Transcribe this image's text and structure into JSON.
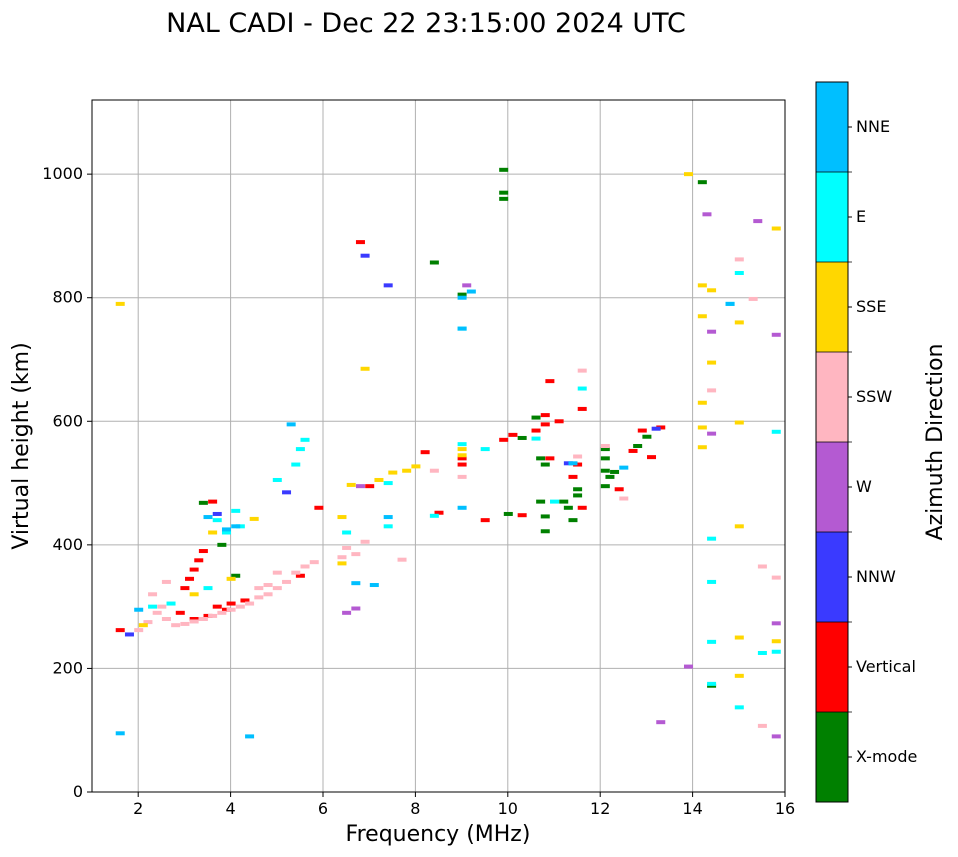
{
  "chart_data": {
    "type": "scatter",
    "title": "NAL CADI - Dec 22 23:15:00 2024 UTC",
    "xlabel": "Frequency (MHz)",
    "ylabel": "Virtual height (km)",
    "xlim": [
      1,
      16
    ],
    "ylim": [
      0,
      1120
    ],
    "xticks": [
      2,
      4,
      6,
      8,
      10,
      12,
      14,
      16
    ],
    "yticks": [
      0,
      200,
      400,
      600,
      800,
      1000
    ],
    "grid": true,
    "colorbar": {
      "label": "Azimuth Direction",
      "categories": [
        {
          "name": "X-mode",
          "color": "#008000"
        },
        {
          "name": "Vertical",
          "color": "#ff0000"
        },
        {
          "name": "NNW",
          "color": "#3a3aff"
        },
        {
          "name": "W",
          "color": "#b45ad2"
        },
        {
          "name": "SSW",
          "color": "#ffb6c1"
        },
        {
          "name": "SSE",
          "color": "#ffd700"
        },
        {
          "name": "E",
          "color": "#00ffff"
        },
        {
          "name": "NNE",
          "color": "#00bfff"
        }
      ]
    },
    "series": [
      {
        "name": "X-mode",
        "points": [
          [
            3.4,
            468
          ],
          [
            3.8,
            400
          ],
          [
            4.1,
            350
          ],
          [
            8.4,
            857
          ],
          [
            9.0,
            805
          ],
          [
            9.9,
            1007
          ],
          [
            9.9,
            970
          ],
          [
            9.9,
            960
          ],
          [
            10.0,
            450
          ],
          [
            10.3,
            573
          ],
          [
            10.6,
            606
          ],
          [
            10.7,
            540
          ],
          [
            10.8,
            530
          ],
          [
            10.7,
            470
          ],
          [
            10.8,
            446
          ],
          [
            10.8,
            422
          ],
          [
            11.2,
            470
          ],
          [
            11.3,
            460
          ],
          [
            11.4,
            440
          ],
          [
            11.5,
            480
          ],
          [
            11.5,
            490
          ],
          [
            12.1,
            555
          ],
          [
            12.1,
            540
          ],
          [
            12.1,
            520
          ],
          [
            12.2,
            510
          ],
          [
            12.3,
            518
          ],
          [
            12.1,
            495
          ],
          [
            12.8,
            560
          ],
          [
            13.0,
            575
          ],
          [
            14.2,
            987
          ],
          [
            14.4,
            172
          ]
        ]
      },
      {
        "name": "Vertical",
        "points": [
          [
            1.6,
            262
          ],
          [
            2.9,
            290
          ],
          [
            3.0,
            330
          ],
          [
            3.1,
            345
          ],
          [
            3.2,
            360
          ],
          [
            3.3,
            375
          ],
          [
            3.4,
            390
          ],
          [
            3.2,
            280
          ],
          [
            3.5,
            285
          ],
          [
            3.6,
            470
          ],
          [
            3.7,
            300
          ],
          [
            3.9,
            295
          ],
          [
            4.0,
            305
          ],
          [
            4.3,
            310
          ],
          [
            5.5,
            350
          ],
          [
            5.9,
            460
          ],
          [
            6.8,
            890
          ],
          [
            7.0,
            495
          ],
          [
            8.2,
            550
          ],
          [
            8.5,
            452
          ],
          [
            9.0,
            540
          ],
          [
            9.0,
            530
          ],
          [
            9.5,
            440
          ],
          [
            9.9,
            570
          ],
          [
            10.1,
            578
          ],
          [
            10.3,
            448
          ],
          [
            10.6,
            585
          ],
          [
            10.8,
            610
          ],
          [
            10.8,
            595
          ],
          [
            10.9,
            665
          ],
          [
            10.9,
            540
          ],
          [
            11.1,
            600
          ],
          [
            11.4,
            510
          ],
          [
            11.5,
            530
          ],
          [
            11.6,
            620
          ],
          [
            11.6,
            460
          ],
          [
            12.4,
            490
          ],
          [
            12.7,
            552
          ],
          [
            12.9,
            585
          ],
          [
            13.1,
            542
          ],
          [
            13.3,
            590
          ]
        ]
      },
      {
        "name": "NNW",
        "points": [
          [
            1.8,
            255
          ],
          [
            3.7,
            450
          ],
          [
            5.2,
            485
          ],
          [
            6.9,
            868
          ],
          [
            7.4,
            820
          ],
          [
            11.3,
            532
          ],
          [
            13.2,
            588
          ]
        ]
      },
      {
        "name": "W",
        "points": [
          [
            6.5,
            290
          ],
          [
            6.7,
            297
          ],
          [
            6.8,
            495
          ],
          [
            9.1,
            820
          ],
          [
            13.3,
            113
          ],
          [
            13.9,
            203
          ],
          [
            14.3,
            935
          ],
          [
            14.4,
            745
          ],
          [
            14.4,
            580
          ],
          [
            15.4,
            924
          ],
          [
            15.8,
            740
          ],
          [
            15.8,
            273
          ],
          [
            15.8,
            90
          ]
        ]
      },
      {
        "name": "SSW",
        "points": [
          [
            2.0,
            262
          ],
          [
            2.2,
            275
          ],
          [
            2.4,
            290
          ],
          [
            2.5,
            300
          ],
          [
            2.6,
            280
          ],
          [
            2.8,
            270
          ],
          [
            3.0,
            272
          ],
          [
            3.2,
            276
          ],
          [
            3.4,
            280
          ],
          [
            3.6,
            285
          ],
          [
            3.8,
            290
          ],
          [
            4.0,
            295
          ],
          [
            4.2,
            300
          ],
          [
            4.4,
            305
          ],
          [
            4.6,
            315
          ],
          [
            4.8,
            320
          ],
          [
            5.0,
            330
          ],
          [
            5.2,
            340
          ],
          [
            5.4,
            355
          ],
          [
            5.6,
            365
          ],
          [
            5.8,
            372
          ],
          [
            2.3,
            320
          ],
          [
            2.6,
            340
          ],
          [
            4.6,
            330
          ],
          [
            4.8,
            335
          ],
          [
            5.0,
            355
          ],
          [
            6.4,
            380
          ],
          [
            6.5,
            395
          ],
          [
            6.7,
            385
          ],
          [
            6.9,
            405
          ],
          [
            7.7,
            376
          ],
          [
            8.4,
            520
          ],
          [
            9.0,
            510
          ],
          [
            11.5,
            543
          ],
          [
            11.6,
            682
          ],
          [
            12.1,
            560
          ],
          [
            12.5,
            475
          ],
          [
            14.4,
            650
          ],
          [
            15.0,
            862
          ],
          [
            15.3,
            798
          ],
          [
            15.5,
            365
          ],
          [
            15.5,
            107
          ],
          [
            15.8,
            347
          ]
        ]
      },
      {
        "name": "SSE",
        "points": [
          [
            1.6,
            790
          ],
          [
            2.1,
            270
          ],
          [
            3.2,
            320
          ],
          [
            3.6,
            420
          ],
          [
            4.0,
            345
          ],
          [
            4.5,
            442
          ],
          [
            6.4,
            445
          ],
          [
            6.4,
            370
          ],
          [
            6.6,
            497
          ],
          [
            6.9,
            685
          ],
          [
            7.2,
            505
          ],
          [
            7.5,
            517
          ],
          [
            7.8,
            520
          ],
          [
            8.0,
            527
          ],
          [
            9.0,
            555
          ],
          [
            9.0,
            545
          ],
          [
            13.9,
            1000
          ],
          [
            14.2,
            630
          ],
          [
            14.2,
            820
          ],
          [
            14.2,
            770
          ],
          [
            14.2,
            590
          ],
          [
            14.2,
            558
          ],
          [
            14.4,
            812
          ],
          [
            14.4,
            695
          ],
          [
            15.0,
            760
          ],
          [
            15.0,
            598
          ],
          [
            15.0,
            430
          ],
          [
            15.0,
            250
          ],
          [
            15.0,
            188
          ],
          [
            15.8,
            912
          ],
          [
            15.8,
            244
          ]
        ]
      },
      {
        "name": "E",
        "points": [
          [
            2.3,
            300
          ],
          [
            2.7,
            305
          ],
          [
            3.5,
            330
          ],
          [
            3.7,
            440
          ],
          [
            3.9,
            420
          ],
          [
            4.1,
            455
          ],
          [
            4.2,
            430
          ],
          [
            5.0,
            505
          ],
          [
            5.4,
            530
          ],
          [
            5.6,
            570
          ],
          [
            5.5,
            555
          ],
          [
            6.5,
            420
          ],
          [
            7.4,
            500
          ],
          [
            7.4,
            430
          ],
          [
            8.4,
            447
          ],
          [
            9.0,
            563
          ],
          [
            9.0,
            750
          ],
          [
            9.5,
            555
          ],
          [
            10.6,
            572
          ],
          [
            11.0,
            470
          ],
          [
            11.6,
            653
          ],
          [
            14.4,
            410
          ],
          [
            14.4,
            340
          ],
          [
            14.4,
            243
          ],
          [
            14.4,
            175
          ],
          [
            14.8,
            790
          ],
          [
            15.0,
            840
          ],
          [
            15.0,
            137
          ],
          [
            15.5,
            225
          ],
          [
            15.8,
            583
          ],
          [
            15.8,
            227
          ]
        ]
      },
      {
        "name": "NNE",
        "points": [
          [
            1.6,
            95
          ],
          [
            2.0,
            295
          ],
          [
            3.5,
            445
          ],
          [
            3.9,
            425
          ],
          [
            4.1,
            430
          ],
          [
            4.4,
            90
          ],
          [
            5.3,
            595
          ],
          [
            6.7,
            338
          ],
          [
            7.1,
            335
          ],
          [
            7.4,
            445
          ],
          [
            9.0,
            800
          ],
          [
            9.0,
            750
          ],
          [
            9.0,
            460
          ],
          [
            9.2,
            810
          ],
          [
            11.4,
            532
          ],
          [
            12.5,
            525
          ],
          [
            14.8,
            790
          ]
        ]
      }
    ]
  }
}
